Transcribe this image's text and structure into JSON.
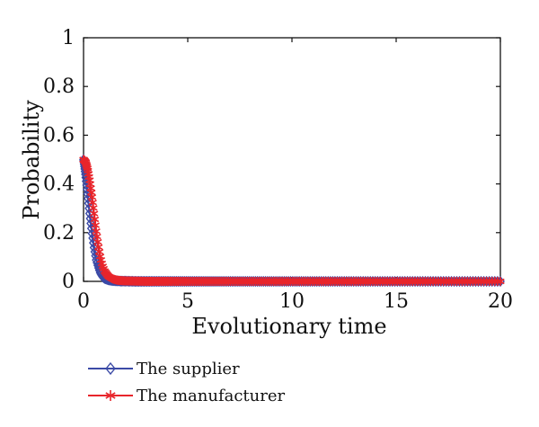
{
  "chart_data": {
    "type": "line",
    "xlabel": "Evolutionary time",
    "ylabel": "Probability",
    "xlim": [
      0,
      20
    ],
    "ylim": [
      0,
      1
    ],
    "xticks": [
      0,
      5,
      10,
      15,
      20
    ],
    "yticks": [
      0,
      0.2,
      0.4,
      0.6,
      0.8,
      1
    ],
    "ytick_labels": [
      "0",
      "0.2",
      "0.4",
      "0.6",
      "0.8",
      "1"
    ],
    "grid": false,
    "legend_position": "bottom-left, below axes",
    "series": [
      {
        "name": "The supplier",
        "color": "#3b4aa6",
        "marker": "diamond",
        "x": [
          0,
          0.1,
          0.2,
          0.3,
          0.4,
          0.5,
          0.6,
          0.7,
          0.8,
          0.9,
          1.0,
          1.2,
          1.4,
          1.6,
          1.8,
          2.0,
          2.5,
          3,
          4,
          5,
          6,
          7,
          8,
          9,
          10,
          11,
          12,
          13,
          14,
          15,
          16,
          17,
          18,
          19,
          20
        ],
        "y": [
          0.5,
          0.43,
          0.35,
          0.27,
          0.2,
          0.14,
          0.09,
          0.06,
          0.035,
          0.02,
          0.012,
          0.006,
          0.003,
          0.002,
          0.001,
          0.001,
          0,
          0,
          0,
          0,
          0,
          0,
          0,
          0,
          0,
          0,
          0,
          0,
          0,
          0,
          0,
          0,
          0,
          0,
          0
        ]
      },
      {
        "name": "The manufacturer",
        "color": "#e8252b",
        "marker": "star",
        "x": [
          0,
          0.1,
          0.2,
          0.3,
          0.4,
          0.5,
          0.6,
          0.7,
          0.8,
          0.9,
          1.0,
          1.2,
          1.4,
          1.6,
          1.8,
          2.0,
          2.5,
          3,
          4,
          5,
          6,
          7,
          8,
          9,
          10,
          11,
          12,
          13,
          14,
          15,
          16,
          17,
          18,
          19,
          20
        ],
        "y": [
          0.5,
          0.49,
          0.46,
          0.41,
          0.35,
          0.28,
          0.21,
          0.15,
          0.1,
          0.066,
          0.043,
          0.02,
          0.01,
          0.005,
          0.003,
          0.002,
          0.001,
          0,
          0,
          0,
          0,
          0,
          0,
          0,
          0,
          0,
          0,
          0,
          0,
          0,
          0,
          0,
          0,
          0,
          0
        ]
      }
    ]
  }
}
